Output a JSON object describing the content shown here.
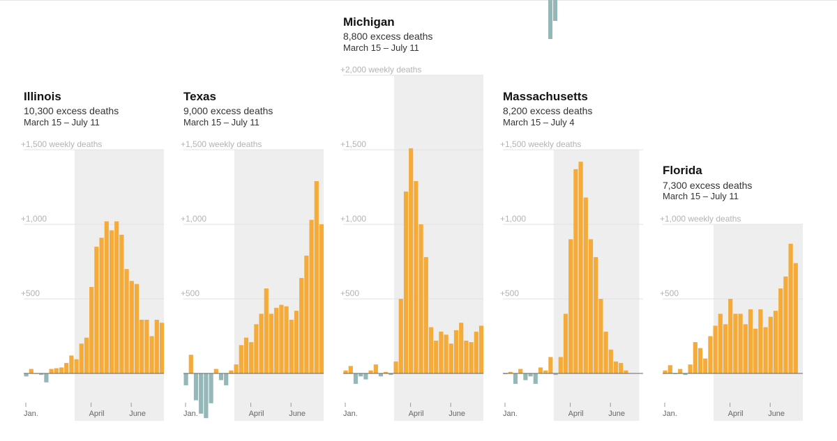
{
  "chart_data": [
    {
      "type": "bar",
      "state": "Illinois",
      "excess": "10,300 excess deaths",
      "period": "March 15 – July 11",
      "yticks": [
        {
          "value": 1500,
          "label": "+1,500 weekly deaths"
        },
        {
          "value": 1000,
          "label": "+1,000"
        },
        {
          "value": 500,
          "label": "+500"
        }
      ],
      "ylim": [
        -300,
        1500
      ],
      "xticks": [
        {
          "week": 1,
          "label": "Jan."
        },
        {
          "week": 14,
          "label": "April"
        },
        {
          "week": 22,
          "label": "June"
        }
      ],
      "shade_weeks": [
        11,
        28
      ],
      "values": [
        -20,
        30,
        0,
        -10,
        -60,
        30,
        35,
        40,
        70,
        120,
        95,
        200,
        240,
        580,
        850,
        910,
        1020,
        960,
        1020,
        930,
        700,
        620,
        600,
        360,
        360,
        250,
        360,
        340
      ]
    },
    {
      "type": "bar",
      "state": "Texas",
      "excess": "9,000 excess deaths",
      "period": "March 15 – July 11",
      "yticks": [
        {
          "value": 1500,
          "label": "+1,500 weekly deaths"
        },
        {
          "value": 1000,
          "label": "+1,000"
        },
        {
          "value": 500,
          "label": "+500"
        }
      ],
      "ylim": [
        -300,
        1500
      ],
      "xticks": [
        {
          "week": 1,
          "label": "Jan."
        },
        {
          "week": 14,
          "label": "April"
        },
        {
          "week": 22,
          "label": "June"
        }
      ],
      "shade_weeks": [
        11,
        28
      ],
      "values": [
        -80,
        125,
        -180,
        -270,
        -300,
        -200,
        30,
        -45,
        -80,
        20,
        60,
        190,
        240,
        210,
        330,
        400,
        570,
        400,
        440,
        460,
        450,
        360,
        420,
        640,
        790,
        1030,
        1290,
        1000
      ]
    },
    {
      "type": "bar",
      "state": "Michigan",
      "excess": "8,800 excess deaths",
      "period": "March 15 – July 11",
      "yticks": [
        {
          "value": 2000,
          "label": "+2,000 weekly deaths"
        },
        {
          "value": 1500,
          "label": "+1,500"
        },
        {
          "value": 1000,
          "label": "+1,000"
        },
        {
          "value": 500,
          "label": "+500"
        }
      ],
      "ylim": [
        -300,
        2000
      ],
      "xticks": [
        {
          "week": 1,
          "label": "Jan."
        },
        {
          "week": 14,
          "label": "April"
        },
        {
          "week": 22,
          "label": "June"
        }
      ],
      "shade_weeks": [
        11,
        28
      ],
      "values": [
        20,
        50,
        -70,
        -20,
        -40,
        20,
        60,
        -20,
        10,
        -10,
        80,
        500,
        1220,
        1510,
        1290,
        1000,
        780,
        310,
        220,
        280,
        260,
        200,
        290,
        340,
        220,
        210,
        280,
        320
      ]
    },
    {
      "type": "bar",
      "state": "Massachusetts",
      "excess": "8,200 excess deaths",
      "period": "March 15 – July 4",
      "yticks": [
        {
          "value": 1500,
          "label": "+1,500 weekly deaths"
        },
        {
          "value": 1000,
          "label": "+1,000"
        },
        {
          "value": 500,
          "label": "+500"
        }
      ],
      "ylim": [
        -300,
        1500
      ],
      "xticks": [
        {
          "week": 1,
          "label": "Jan."
        },
        {
          "week": 14,
          "label": "April"
        },
        {
          "week": 22,
          "label": "June"
        }
      ],
      "shade_weeks": [
        11,
        27
      ],
      "values": [
        -5,
        10,
        -70,
        30,
        -45,
        -20,
        -70,
        40,
        20,
        110,
        -10,
        110,
        400,
        900,
        1370,
        1420,
        1180,
        900,
        780,
        500,
        280,
        160,
        80,
        70,
        20
      ]
    },
    {
      "type": "bar",
      "state": "Florida",
      "excess": "7,300 excess deaths",
      "period": "March 15 – July 11",
      "yticks": [
        {
          "value": 1000,
          "label": "+1,000 weekly deaths"
        },
        {
          "value": 500,
          "label": "+500"
        }
      ],
      "ylim": [
        -300,
        1000
      ],
      "xticks": [
        {
          "week": 1,
          "label": "Jan."
        },
        {
          "week": 14,
          "label": "April"
        },
        {
          "week": 22,
          "label": "June"
        }
      ],
      "shade_weeks": [
        11,
        28
      ],
      "values": [
        20,
        55,
        -5,
        30,
        -10,
        60,
        210,
        170,
        100,
        250,
        320,
        400,
        330,
        500,
        400,
        400,
        330,
        430,
        300,
        430,
        310,
        380,
        420,
        570,
        650,
        870,
        740
      ]
    }
  ],
  "colors": {
    "positive": "#f4ab3a",
    "negative": "#94b8b8",
    "shade": "#eeeeee",
    "gridline": "#e2e2e2",
    "baseline": "#666666"
  }
}
